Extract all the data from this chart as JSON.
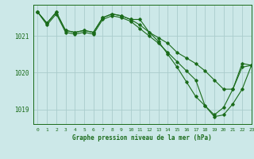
{
  "background_color": "#cce8e8",
  "grid_color": "#aacccc",
  "line_color": "#1a6b1a",
  "title": "Graphe pression niveau de la mer (hPa)",
  "xlim": [
    -0.5,
    23
  ],
  "ylim": [
    1018.6,
    1021.85
  ],
  "yticks": [
    1019,
    1020,
    1021
  ],
  "xticks": [
    0,
    1,
    2,
    3,
    4,
    5,
    6,
    7,
    8,
    9,
    10,
    11,
    12,
    13,
    14,
    15,
    16,
    17,
    18,
    19,
    20,
    21,
    22,
    23
  ],
  "series": [
    [
      1021.65,
      1021.35,
      1021.65,
      1021.15,
      1021.1,
      1021.15,
      1021.1,
      1021.5,
      1021.6,
      1021.55,
      1021.45,
      1021.45,
      1021.1,
      1020.85,
      1020.5,
      1020.15,
      1019.75,
      1019.35,
      1019.1,
      1018.85,
      1019.05,
      1019.55,
      1020.25,
      1020.2
    ],
    [
      1021.65,
      1021.35,
      1021.65,
      1021.15,
      1021.1,
      1021.15,
      1021.1,
      1021.5,
      1021.6,
      1021.55,
      1021.45,
      1021.3,
      1021.1,
      1020.95,
      1020.8,
      1020.55,
      1020.4,
      1020.25,
      1020.05,
      1019.8,
      1019.55,
      1019.55,
      1020.15,
      1020.2
    ],
    [
      1021.65,
      1021.3,
      1021.6,
      1021.1,
      1021.05,
      1021.1,
      1021.05,
      1021.45,
      1021.55,
      1021.5,
      1021.4,
      1021.2,
      1021.0,
      1020.8,
      1020.55,
      1020.3,
      1020.05,
      1019.8,
      1019.1,
      1018.8,
      1018.85,
      1019.15,
      1019.55,
      1020.2
    ]
  ]
}
